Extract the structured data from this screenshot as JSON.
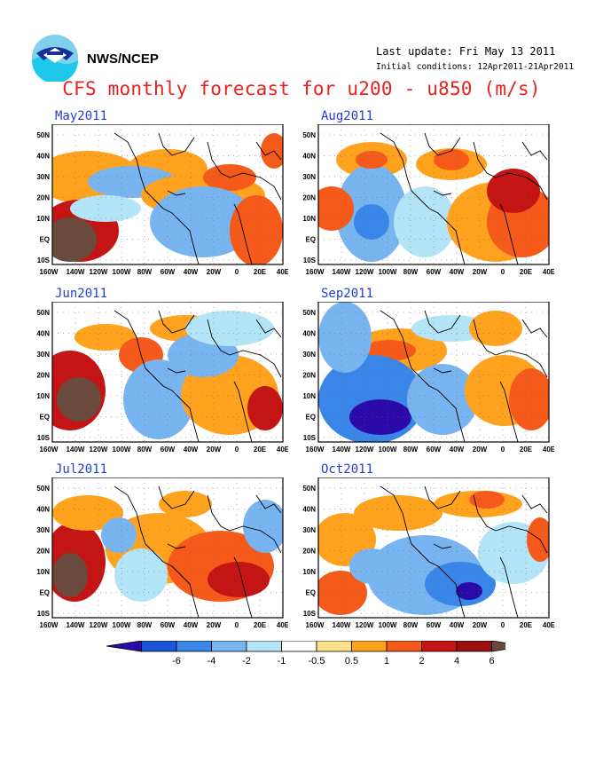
{
  "header": {
    "org": "NWS/NCEP",
    "last_update": "Last update: Fri May 13 2011",
    "initial_conditions": "Initial conditions: 12Apr2011-21Apr2011",
    "title": "CFS monthly forecast for u200 - u850 (m/s)"
  },
  "panels": [
    {
      "month": "May2011",
      "pattern": 0
    },
    {
      "month": "Aug2011",
      "pattern": 1
    },
    {
      "month": "Jun2011",
      "pattern": 2
    },
    {
      "month": "Sep2011",
      "pattern": 3
    },
    {
      "month": "Jul2011",
      "pattern": 4
    },
    {
      "month": "Oct2011",
      "pattern": 5
    }
  ],
  "axes": {
    "lon_labels": [
      "160W",
      "140W",
      "120W",
      "100W",
      "80W",
      "60W",
      "40W",
      "20W",
      "0",
      "20E",
      "40E"
    ],
    "lat_labels": [
      "50N",
      "40N",
      "30N",
      "20N",
      "10N",
      "EQ",
      "10S"
    ]
  },
  "colorbar": {
    "levels": [
      "-6",
      "-4",
      "-2",
      "-1",
      "-0.5",
      "0.5",
      "1",
      "2",
      "4",
      "6"
    ],
    "colors": [
      "#2a0aa8",
      "#1c55d8",
      "#3a86e8",
      "#78b4f0",
      "#b4e4f8",
      "#ffffff",
      "#ffe08a",
      "#ffa21e",
      "#f55a1a",
      "#c41414",
      "#9b1010",
      "#6a4a3c"
    ]
  },
  "logo": "noaa-logo"
}
